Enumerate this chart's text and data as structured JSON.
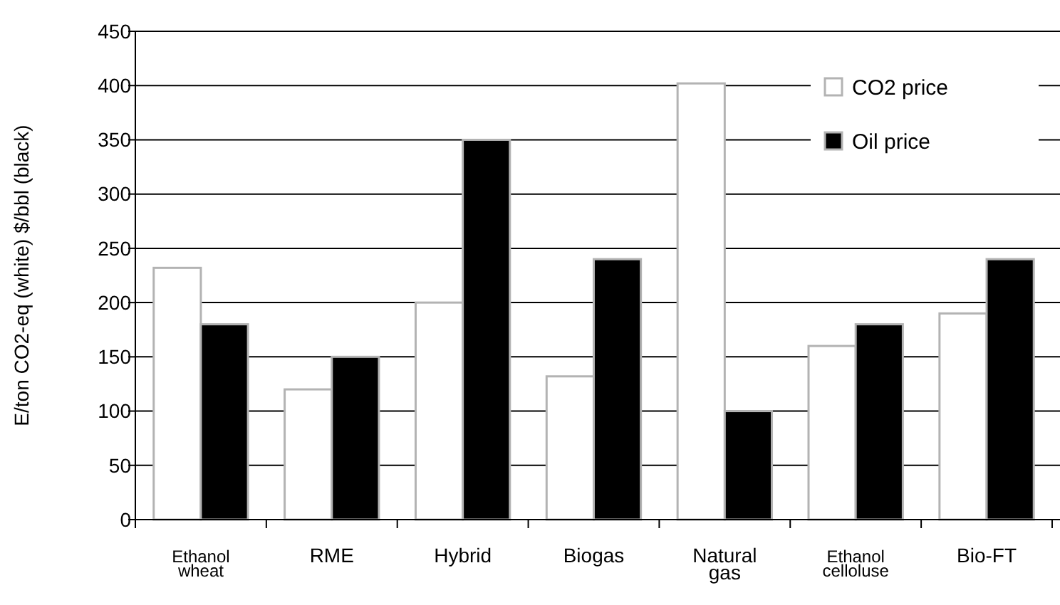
{
  "chart_data": {
    "type": "bar",
    "ylabel": "E/ton CO2-eq (white) $/bbl (black)",
    "categories": [
      "Ethanol wheat",
      "RME",
      "Hybrid",
      "Biogas",
      "Natural gas",
      "Ethanol celloluse",
      "Bio-FT"
    ],
    "series": [
      {
        "name": "CO2 price",
        "color": "#ffffff",
        "values": [
          232,
          120,
          200,
          132,
          402,
          160,
          190
        ]
      },
      {
        "name": "Oil price",
        "color": "#000000",
        "values": [
          180,
          150,
          350,
          240,
          100,
          180,
          240
        ]
      }
    ],
    "ylim": [
      0,
      450
    ],
    "yticks": [
      0,
      50,
      100,
      150,
      200,
      250,
      300,
      350,
      400,
      450
    ],
    "grid": "y",
    "legend": "top right"
  }
}
